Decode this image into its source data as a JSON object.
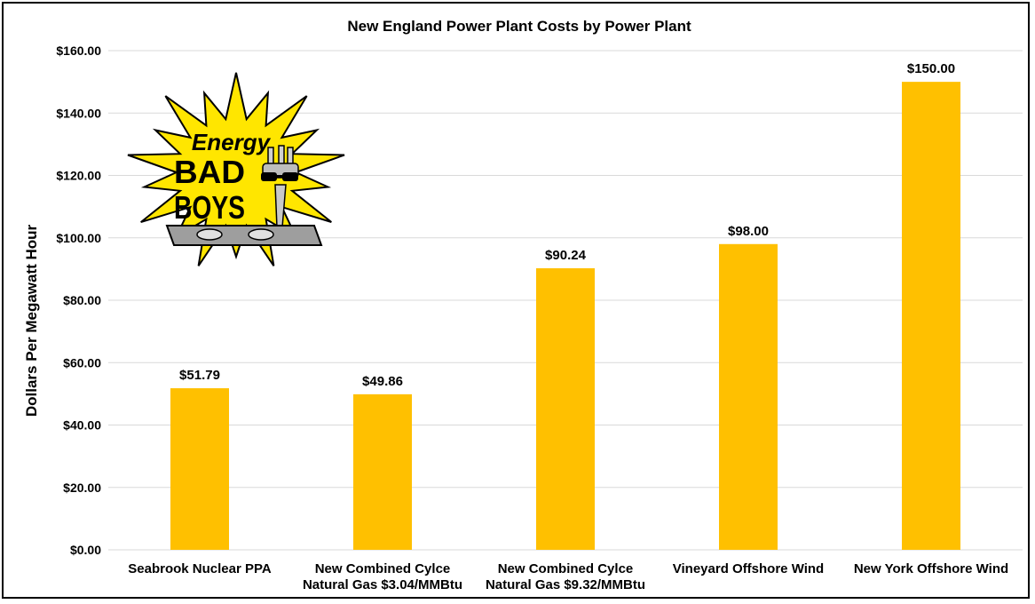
{
  "chart_data": {
    "type": "bar",
    "title": "New England Power Plant Costs by Power Plant",
    "ylabel": "Dollars Per Megawatt Hour",
    "xlabel": "",
    "ylim": [
      0,
      160
    ],
    "yticks": [
      "$0.00",
      "$20.00",
      "$40.00",
      "$60.00",
      "$80.00",
      "$100.00",
      "$120.00",
      "$140.00",
      "$160.00"
    ],
    "grid": true,
    "categories": [
      [
        "Seabrook Nuclear PPA"
      ],
      [
        "New Combined Cylce",
        "Natural Gas $3.04/MMBtu"
      ],
      [
        "New Combined Cylce",
        "Natural Gas $9.32/MMBtu"
      ],
      [
        "Vineyard Offshore Wind"
      ],
      [
        "New York Offshore Wind"
      ]
    ],
    "values": [
      51.79,
      49.86,
      90.24,
      98.0,
      150.0
    ],
    "data_labels": [
      "$51.79",
      "$49.86",
      "$90.24",
      "$98.00",
      "$150.00"
    ],
    "bar_color": "#FFC000"
  },
  "logo": {
    "line1": "Energy",
    "line2": "BAD",
    "line3": "BOYS",
    "burst_color": "#FFE600",
    "icon": "plug-with-sunglasses-icon"
  }
}
